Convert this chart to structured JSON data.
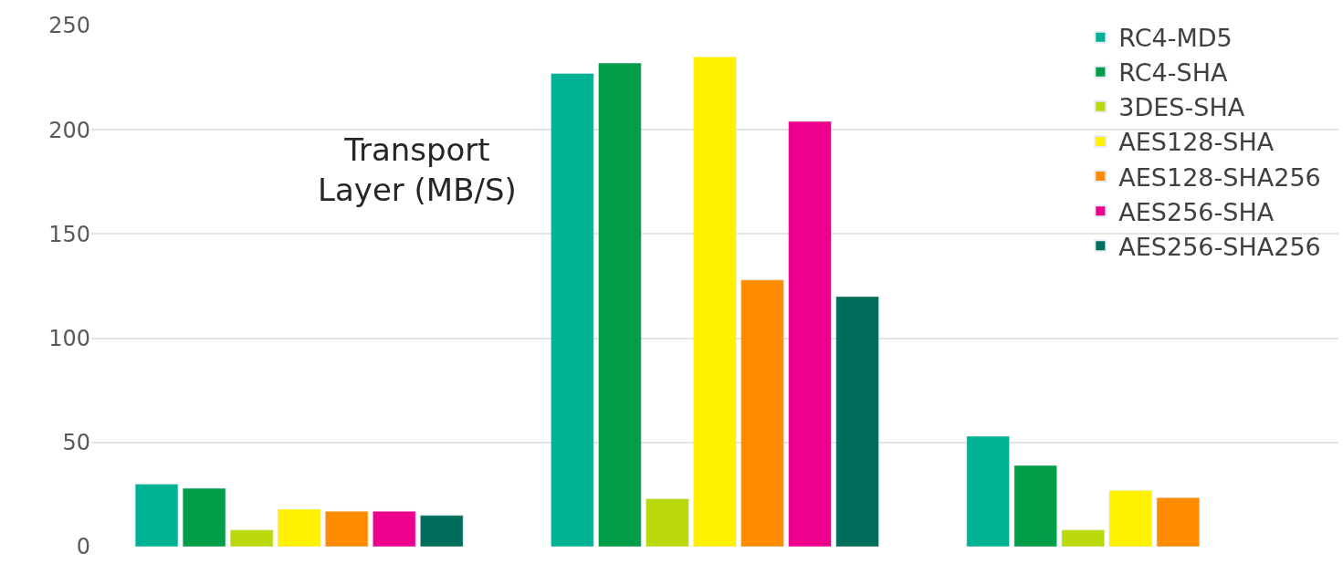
{
  "chart_data": {
    "type": "bar",
    "categories": [
      null,
      null,
      null
    ],
    "series": [
      {
        "name": "RC4-MD5",
        "color": "#00b294",
        "values": [
          30,
          227,
          53
        ]
      },
      {
        "name": "RC4-SHA",
        "color": "#009e49",
        "values": [
          28,
          232,
          39
        ]
      },
      {
        "name": "3DES-SHA",
        "color": "#bad80a",
        "values": [
          8,
          23,
          8
        ]
      },
      {
        "name": "AES128-SHA",
        "color": "#fff100",
        "values": [
          18,
          235,
          27
        ]
      },
      {
        "name": "AES128-SHA256",
        "color": "#ff8c00",
        "values": [
          17,
          128,
          23.5
        ]
      },
      {
        "name": "AES256-SHA",
        "color": "#ec008c",
        "values": [
          17,
          204,
          null
        ]
      },
      {
        "name": "AES256-SHA256",
        "color": "#006e5a",
        "values": [
          15,
          120,
          null
        ]
      }
    ],
    "ylim": [
      0,
      250
    ],
    "yticks": [
      0,
      50,
      100,
      150,
      200,
      250
    ],
    "grid": "y",
    "legend": "top right",
    "annotations": [
      "Transport\nLayer (MB/S)"
    ]
  }
}
